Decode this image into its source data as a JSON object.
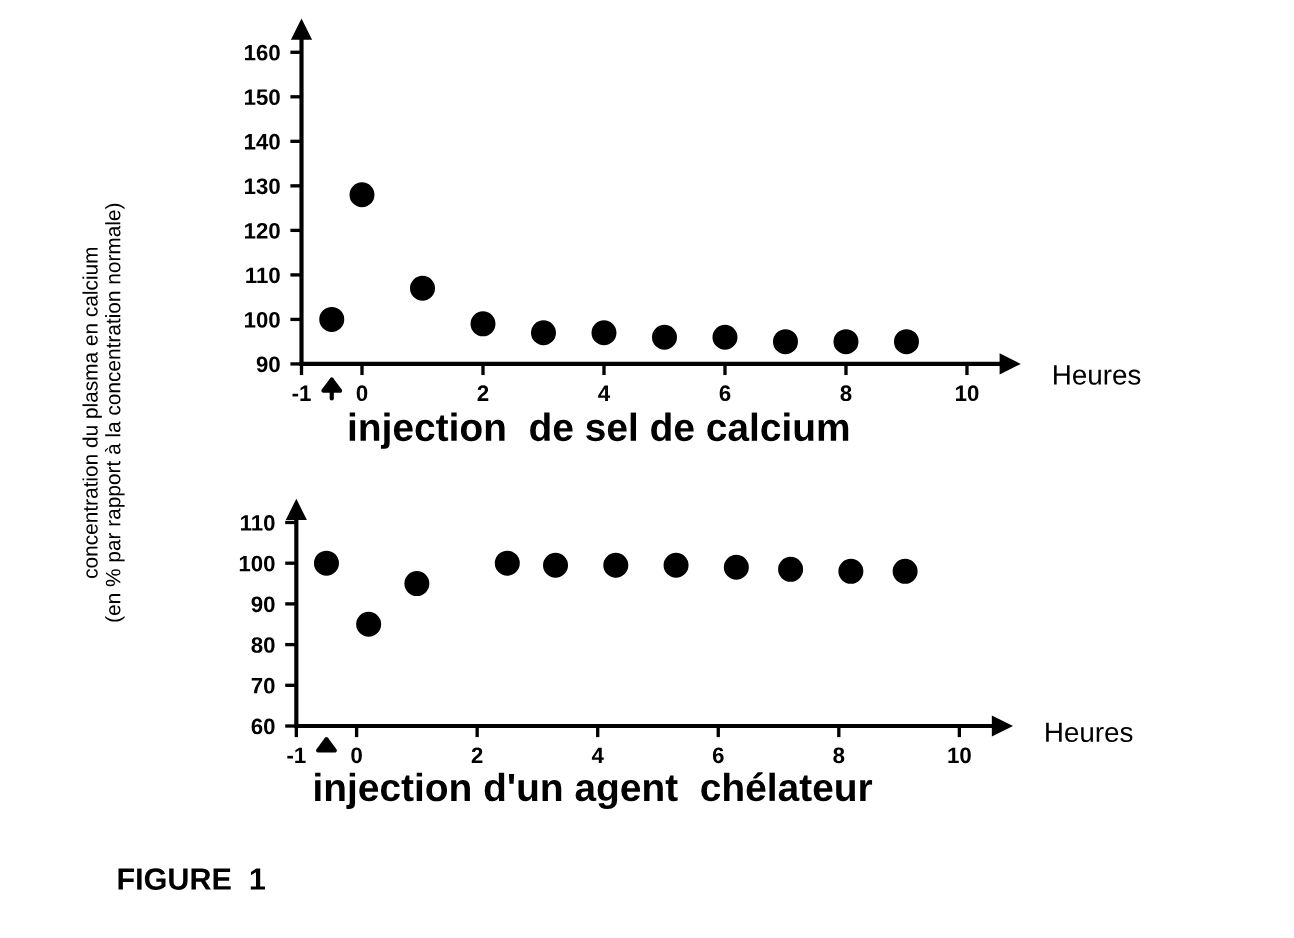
{
  "chart_data": [
    {
      "type": "scatter",
      "title": "injection  de sel de calcium",
      "xlabel": "Heures",
      "ylabel": "concentration du plasma en calcium\n(en % par rapport à la concentration normale)",
      "marker": "circle",
      "grid": false,
      "legend": false,
      "x": [
        -0.5,
        0,
        1,
        2,
        3,
        4,
        5,
        6,
        7,
        8,
        9
      ],
      "series": [
        {
          "color": "#000000",
          "values": [
            100,
            128,
            107,
            99,
            97,
            97,
            96,
            96,
            95,
            95,
            95
          ]
        }
      ],
      "xlim": [
        -1,
        10.7
      ],
      "xticks": [
        -1,
        0,
        2,
        4,
        6,
        8,
        10
      ],
      "ylim": [
        90,
        165
      ],
      "yticks": [
        90,
        100,
        110,
        120,
        130,
        140,
        150,
        160
      ]
    },
    {
      "type": "scatter",
      "title": "injection d'un agent  chélateur",
      "xlabel": "Heures",
      "marker": "circle",
      "grid": false,
      "legend": false,
      "x": [
        -0.5,
        0.2,
        1,
        2.5,
        3.3,
        4.3,
        5.3,
        6.3,
        7.2,
        8.2,
        9.1
      ],
      "series": [
        {
          "color": "#000000",
          "values": [
            100,
            85,
            95,
            100,
            99.5,
            99.5,
            99.5,
            99,
            98.5,
            98,
            98
          ]
        }
      ],
      "xlim": [
        -1,
        10.7
      ],
      "xticks": [
        -1,
        0,
        2,
        4,
        6,
        8,
        10
      ],
      "ylim": [
        60,
        113
      ],
      "yticks": [
        60,
        70,
        80,
        90,
        100,
        110
      ],
      "annotations": [
        "FIGURE  1"
      ]
    }
  ]
}
